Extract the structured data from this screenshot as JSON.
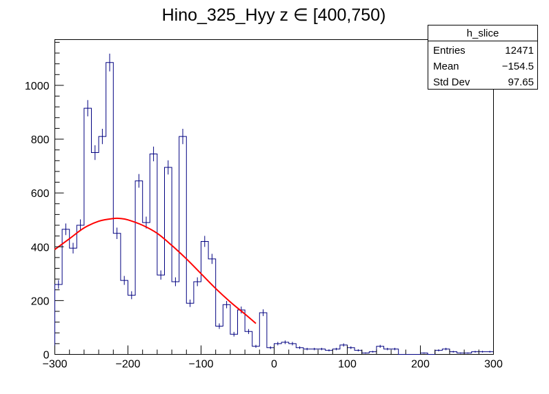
{
  "chart_data": {
    "type": "bar",
    "title": "Hino_325_Hyy z  ∈ [400,750)",
    "xlabel": "",
    "ylabel": "",
    "xlim": [
      -300,
      300
    ],
    "ylim": [
      0,
      1170
    ],
    "x_ticks": [
      -300,
      -200,
      -100,
      0,
      100,
      200,
      300
    ],
    "x_tick_labels": [
      "−300",
      "−200",
      "−100",
      "0",
      "100",
      "200",
      "300"
    ],
    "y_ticks": [
      0,
      200,
      400,
      600,
      800,
      1000
    ],
    "y_tick_labels": [
      "0",
      "200",
      "400",
      "600",
      "800",
      "1000"
    ],
    "bin_width": 10,
    "bin_edges_start": -300,
    "values": [
      260,
      465,
      395,
      480,
      915,
      750,
      810,
      1085,
      450,
      275,
      220,
      645,
      490,
      745,
      295,
      695,
      270,
      810,
      190,
      270,
      420,
      355,
      105,
      185,
      75,
      165,
      85,
      30,
      155,
      25,
      40,
      45,
      40,
      25,
      20,
      20,
      20,
      15,
      20,
      35,
      25,
      15,
      5,
      10,
      30,
      20,
      20,
      0,
      0,
      0,
      5,
      0,
      15,
      20,
      10,
      5,
      5,
      10,
      10,
      10
    ],
    "error_bar_max_value": 400,
    "series": [
      {
        "name": "",
        "kind": "histogram",
        "color": "#000080"
      },
      {
        "name": "",
        "kind": "fit",
        "color": "#ff0000",
        "x": [
          -300,
          -280,
          -260,
          -240,
          -220,
          -210,
          -200,
          -180,
          -160,
          -140,
          -120,
          -100,
          -80,
          -60,
          -40,
          -25
        ],
        "y": [
          390,
          430,
          470,
          495,
          505,
          505,
          500,
          480,
          450,
          405,
          355,
          300,
          245,
          195,
          150,
          115
        ]
      }
    ],
    "grid": false,
    "legend": "none",
    "stats_box": {
      "title": "h_slice",
      "rows": [
        {
          "label": "Entries",
          "value": "12471"
        },
        {
          "label": "Mean",
          "value": "−154.5"
        },
        {
          "label": "Std Dev",
          "value": "97.65"
        }
      ]
    }
  }
}
